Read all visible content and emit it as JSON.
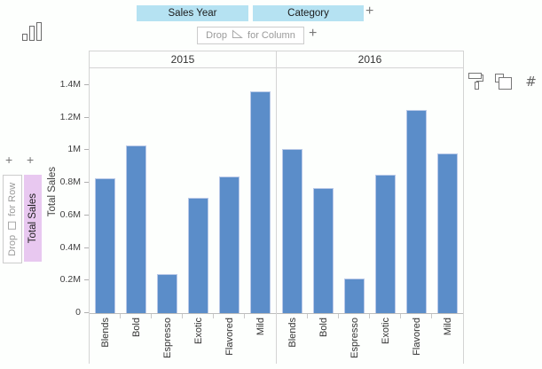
{
  "chart_type_icon": "column-chart-icon",
  "columns_zone": {
    "pills": [
      {
        "label": "Sales Year"
      },
      {
        "label": "Category"
      }
    ],
    "add_button": "+",
    "drop_zone": {
      "prefix": "Drop",
      "suffix": "for Column",
      "icon": "drop-triangle-icon"
    },
    "drop_add_button": "+"
  },
  "rows_zone": {
    "add_buttons": [
      "+",
      "+"
    ],
    "drop_zone": {
      "prefix": "Drop",
      "suffix": "for Row",
      "icon": "drop-square-icon"
    },
    "pills": [
      {
        "label": "Total Sales"
      }
    ]
  },
  "toolbar": {
    "icons": [
      "paint-roller-icon",
      "copy-icon",
      "number-sign-icon"
    ],
    "number_glyph": "#"
  },
  "colors": {
    "bar_fill": "#5b8dc9",
    "bar_border": "#b9c9e8",
    "column_pill_bg": "#b5e2f2",
    "row_pill_bg": "#e8c8f0",
    "panel_border": "#d4d4d4",
    "drop_text": "#9a9a9a"
  },
  "chart_data": {
    "type": "bar",
    "title": "",
    "xlabel": "",
    "ylabel": "Total Sales",
    "value_format": "millions",
    "ylim": [
      0,
      1.4
    ],
    "grid": false,
    "yticks": [
      {
        "value": 0.0,
        "label": "0"
      },
      {
        "value": 0.2,
        "label": "0.2M"
      },
      {
        "value": 0.4,
        "label": "0.4M"
      },
      {
        "value": 0.6,
        "label": "0.6M"
      },
      {
        "value": 0.8,
        "label": "0.8M"
      },
      {
        "value": 1.0,
        "label": "1M"
      },
      {
        "value": 1.2,
        "label": "1.2M"
      },
      {
        "value": 1.4,
        "label": "1.4M"
      }
    ],
    "categories": [
      "Blends",
      "Bold",
      "Espresso",
      "Exotic",
      "Flavored",
      "Mild"
    ],
    "series": [
      {
        "name": "2015",
        "values": [
          0.83,
          1.03,
          0.24,
          0.71,
          0.84,
          1.36
        ]
      },
      {
        "name": "2016",
        "values": [
          1.01,
          0.77,
          0.21,
          0.85,
          1.25,
          0.98
        ]
      }
    ]
  }
}
